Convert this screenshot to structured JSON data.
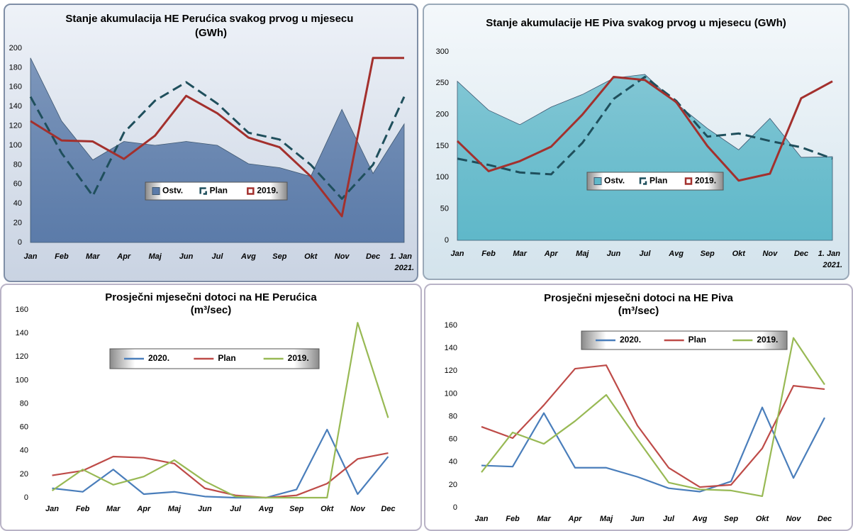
{
  "chart_data": [
    {
      "type": "line",
      "title": "Stanje akumulacija HE Perućica svakog prvog u mjesecu (GWh)",
      "categories": [
        "Jan",
        "Feb",
        "Mar",
        "Apr",
        "Maj",
        "Jun",
        "Jul",
        "Avg",
        "Sep",
        "Okt",
        "Nov",
        "Dec",
        "1. Jan 2021."
      ],
      "series": [
        {
          "name": "Ostv.",
          "color": "#5b7ba9",
          "kind": "area",
          "values": [
            190,
            125,
            85,
            104,
            100,
            104,
            100,
            81,
            77,
            68,
            137,
            71,
            122
          ]
        },
        {
          "name": "Plan",
          "color": "#1f4f5c",
          "kind": "dashed",
          "values": [
            150,
            92,
            48,
            113,
            146,
            165,
            143,
            113,
            106,
            80,
            45,
            80,
            150
          ]
        },
        {
          "name": "2019.",
          "color": "#a3302d",
          "kind": "solid",
          "values": [
            125,
            105,
            104,
            86,
            110,
            151,
            133,
            108,
            98,
            68,
            27,
            190,
            190
          ]
        }
      ],
      "ylim": [
        0,
        200
      ],
      "yticks": [
        0,
        20,
        40,
        60,
        80,
        100,
        120,
        140,
        160,
        180,
        200
      ]
    },
    {
      "type": "line",
      "title": "Stanje akumulacije HE Piva svakog prvog u mjesecu (GWh)",
      "categories": [
        "Jan",
        "Feb",
        "Mar",
        "Apr",
        "Maj",
        "Jun",
        "Jul",
        "Avg",
        "Sep",
        "Okt",
        "Nov",
        "Dec",
        "1. Jan 2021."
      ],
      "series": [
        {
          "name": "Ostv.",
          "color": "#5fb8c9",
          "kind": "area",
          "values": [
            253,
            207,
            184,
            212,
            232,
            258,
            264,
            218,
            178,
            144,
            194,
            132,
            133
          ]
        },
        {
          "name": "Plan",
          "color": "#1f4f5c",
          "kind": "dashed",
          "values": [
            130,
            120,
            108,
            105,
            155,
            225,
            260,
            222,
            165,
            170,
            158,
            148,
            130
          ]
        },
        {
          "name": "2019.",
          "color": "#a3302d",
          "kind": "solid",
          "values": [
            158,
            110,
            126,
            149,
            200,
            260,
            255,
            220,
            150,
            95,
            106,
            226,
            253
          ]
        }
      ],
      "ylim": [
        0,
        300
      ],
      "yticks": [
        0,
        50,
        100,
        150,
        200,
        250,
        300
      ]
    },
    {
      "type": "line",
      "title": "Prosječni mjesečni dotoci na HE Perućica",
      "subtitle": "(m³/sec)",
      "categories": [
        "Jan",
        "Feb",
        "Mar",
        "Apr",
        "Maj",
        "Jun",
        "Jul",
        "Avg",
        "Sep",
        "Okt",
        "Nov",
        "Dec"
      ],
      "series": [
        {
          "name": "2020.",
          "color": "#4a7ebb",
          "kind": "solid",
          "values": [
            8,
            5,
            24,
            3,
            5,
            1,
            0,
            0,
            7,
            58,
            3,
            35
          ]
        },
        {
          "name": "Plan",
          "color": "#be4b48",
          "kind": "solid",
          "values": [
            19,
            23,
            35,
            34,
            29,
            8,
            2,
            0,
            2,
            12,
            33,
            38
          ]
        },
        {
          "name": "2019.",
          "color": "#98b954",
          "kind": "solid",
          "values": [
            6,
            24,
            11,
            18,
            32,
            14,
            1,
            0,
            0,
            0,
            149,
            68
          ]
        }
      ],
      "ylim": [
        0,
        160
      ],
      "yticks": [
        0,
        20,
        40,
        60,
        80,
        100,
        120,
        140,
        160
      ]
    },
    {
      "type": "line",
      "title": "Prosječni mjesečni dotoci na HE Piva",
      "subtitle": "(m³/sec)",
      "categories": [
        "Jan",
        "Feb",
        "Mar",
        "Apr",
        "Maj",
        "Jun",
        "Jul",
        "Avg",
        "Sep",
        "Okt",
        "Nov",
        "Dec"
      ],
      "series": [
        {
          "name": "2020.",
          "color": "#4a7ebb",
          "kind": "solid",
          "values": [
            37,
            36,
            83,
            35,
            35,
            27,
            17,
            14,
            23,
            88,
            26,
            79
          ]
        },
        {
          "name": "Plan",
          "color": "#be4b48",
          "kind": "solid",
          "values": [
            71,
            61,
            90,
            122,
            125,
            72,
            35,
            18,
            20,
            52,
            107,
            104
          ]
        },
        {
          "name": "2019.",
          "color": "#98b954",
          "kind": "solid",
          "values": [
            31,
            66,
            56,
            76,
            99,
            60,
            22,
            16,
            15,
            10,
            149,
            108
          ]
        }
      ],
      "ylim": [
        0,
        160
      ],
      "yticks": [
        0,
        20,
        40,
        60,
        80,
        100,
        120,
        140,
        160
      ]
    }
  ]
}
